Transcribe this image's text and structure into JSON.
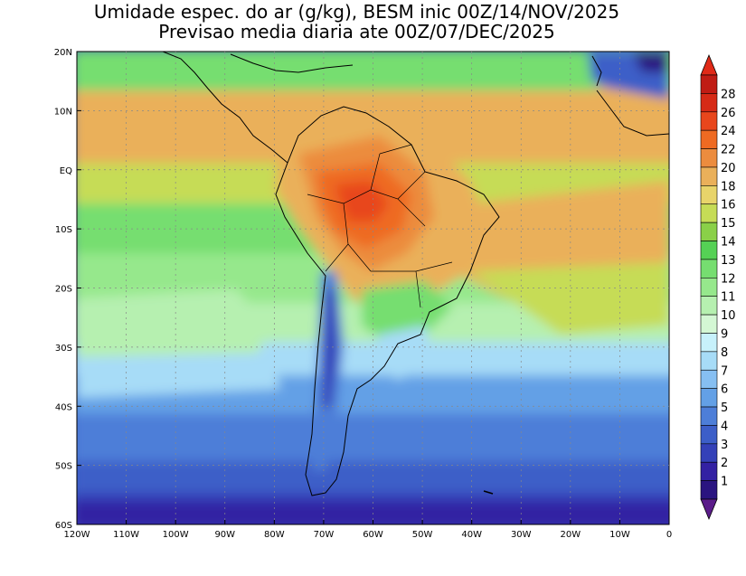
{
  "map": {
    "title_line1": "Umidade espec. do ar (g/kg), BESM inic 00Z/14/NOV/2025",
    "title_line2": "Previsao media diaria ate 00Z/07/DEC/2025",
    "lat_labels": [
      "20N",
      "10N",
      "EQ",
      "10S",
      "20S",
      "30S",
      "40S",
      "50S",
      "60S"
    ],
    "lon_labels": [
      "120W",
      "110W",
      "100W",
      "90W",
      "80W",
      "70W",
      "60W",
      "50W",
      "40W",
      "30W",
      "20W",
      "10W",
      "0"
    ],
    "extent": {
      "lon_min": -120,
      "lon_max": 0,
      "lat_min": -60,
      "lat_max": 20
    },
    "variable": "specific humidity",
    "unit": "g/kg"
  },
  "colorbar": {
    "levels": [
      "1",
      "2",
      "3",
      "4",
      "5",
      "6",
      "7",
      "8",
      "9",
      "10",
      "11",
      "12",
      "13",
      "14",
      "15",
      "16",
      "18",
      "20",
      "22",
      "24",
      "26",
      "28"
    ],
    "colors": [
      "#2a1480",
      "#3321a3",
      "#3441b8",
      "#3c5ec8",
      "#4d7ed8",
      "#63a0e6",
      "#86bff2",
      "#a7dcf7",
      "#c7f1fb",
      "#d4f7d4",
      "#b6f0b0",
      "#96e88c",
      "#76de70",
      "#55d155",
      "#8ad048",
      "#c6dc56",
      "#e8d46a",
      "#eab05a",
      "#ec8c3e",
      "#ee6a22",
      "#e8461c",
      "#d62a16",
      "#c01c14"
    ],
    "under_color": "#5b1c8a",
    "over_color": "#e02a18"
  }
}
